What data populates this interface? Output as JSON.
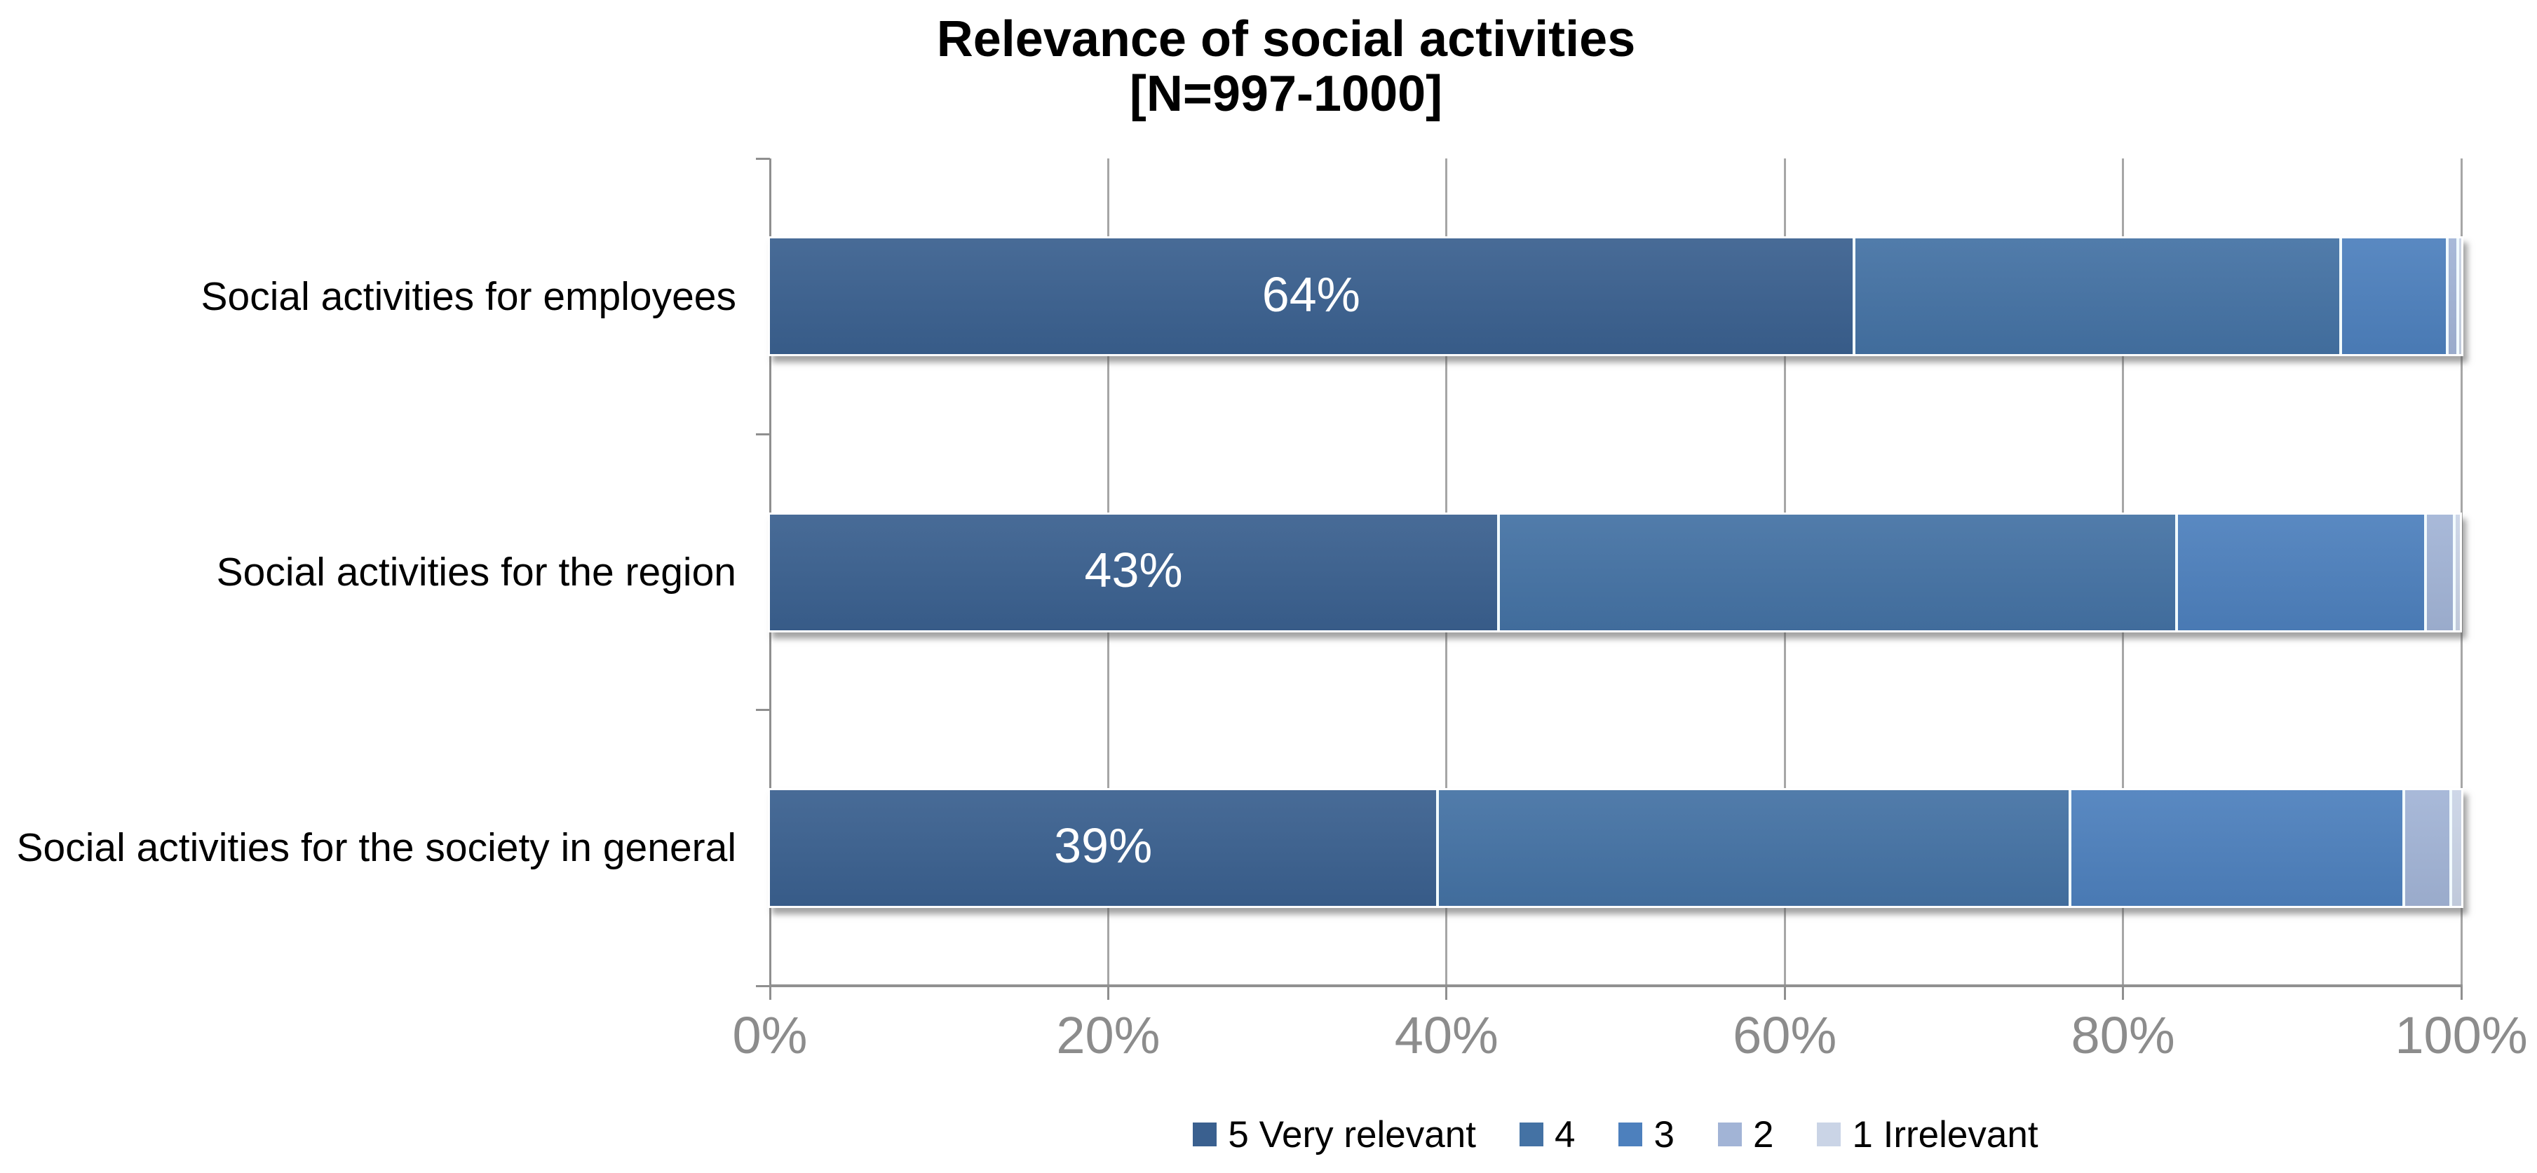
{
  "chart_data": {
    "type": "bar",
    "orientation": "horizontal",
    "stacked": true,
    "title": "Relevance of social activities",
    "subtitle": "[N=997-1000]",
    "categories": [
      "Social activities for employees",
      "Social activities for the region",
      "Social activities for the society in general"
    ],
    "series": [
      {
        "name": "5 Very relevant",
        "color": "#3a608f",
        "values": [
          64,
          43,
          39.4
        ],
        "labels": [
          "64%",
          "43%",
          "39%"
        ]
      },
      {
        "name": "4",
        "color": "#4472a4",
        "values": [
          28.8,
          40.1,
          37.4
        ],
        "labels": [
          "",
          "",
          ""
        ]
      },
      {
        "name": "3",
        "color": "#4d80bd",
        "values": [
          6.3,
          14.7,
          19.7
        ],
        "labels": [
          "",
          "",
          ""
        ]
      },
      {
        "name": "2",
        "color": "#a2b4d6",
        "values": [
          0.6,
          1.7,
          2.8
        ],
        "labels": [
          "",
          "",
          ""
        ]
      },
      {
        "name": "1 Irrelevant",
        "color": "#cad4e6",
        "values": [
          0.3,
          0.4,
          0.7
        ],
        "labels": [
          "",
          "",
          ""
        ]
      }
    ],
    "x_axis": {
      "min": 0,
      "max": 100,
      "tick_step": 20,
      "ticks": [
        "0%",
        "20%",
        "40%",
        "60%",
        "80%",
        "100%"
      ]
    },
    "grid": true,
    "legend_position": "bottom",
    "data_label_color": "#ffffff",
    "axis_label_color": "#8c8c8c",
    "gridline_color": "#a6a6a6"
  }
}
